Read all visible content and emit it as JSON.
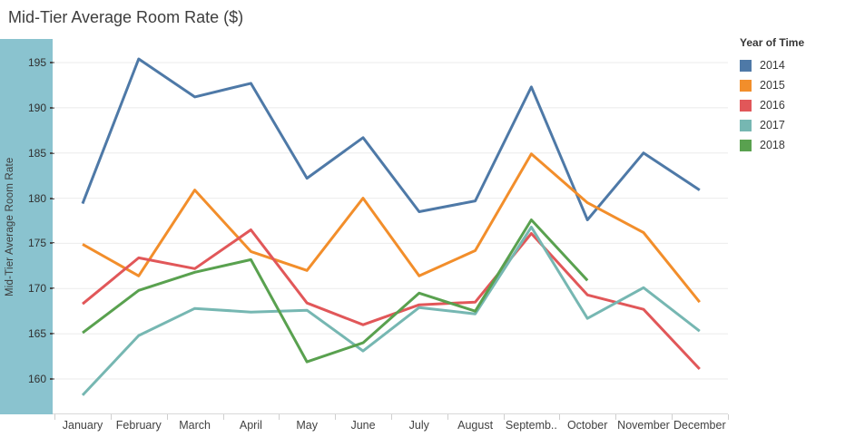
{
  "title": "Mid-Tier Average Room Rate ($)",
  "y_axis": {
    "label": "Mid-Tier Average Room Rate",
    "tick_values": [
      195,
      190,
      185,
      180,
      175,
      170,
      165,
      160
    ]
  },
  "x_axis": {
    "tick_labels": [
      "January",
      "February",
      "March",
      "April",
      "May",
      "June",
      "July",
      "August",
      "Septemb..",
      "October",
      "November",
      "December"
    ]
  },
  "legend": {
    "title": "Year of Time",
    "items": [
      {
        "label": "2014",
        "color": "#4e79a7"
      },
      {
        "label": "2015",
        "color": "#f28e2b"
      },
      {
        "label": "2016",
        "color": "#e15759"
      },
      {
        "label": "2017",
        "color": "#76b7b2"
      },
      {
        "label": "2018",
        "color": "#59a14f"
      }
    ]
  },
  "chart_data": {
    "type": "line",
    "title": "Mid-Tier Average Room Rate ($)",
    "xlabel": "",
    "ylabel": "Mid-Tier Average Room Rate",
    "x": [
      "January",
      "February",
      "March",
      "April",
      "May",
      "June",
      "July",
      "August",
      "September",
      "October",
      "November",
      "December"
    ],
    "x_display": [
      "January",
      "February",
      "March",
      "April",
      "May",
      "June",
      "July",
      "August",
      "Septemb..",
      "October",
      "November",
      "December"
    ],
    "ylim": [
      156,
      197.5
    ],
    "yticks": [
      160,
      165,
      170,
      175,
      180,
      185,
      190,
      195
    ],
    "grid": true,
    "legend_position": "right",
    "legend_title": "Year of Time",
    "series": [
      {
        "name": "2014",
        "color": "#4e79a7",
        "values": [
          179.4,
          195.4,
          191.2,
          192.7,
          182.2,
          186.7,
          178.5,
          179.7,
          192.3,
          177.6,
          185.0,
          180.9
        ]
      },
      {
        "name": "2015",
        "color": "#f28e2b",
        "values": [
          174.9,
          171.4,
          180.9,
          174.1,
          172.0,
          180.0,
          171.4,
          174.2,
          184.9,
          179.5,
          176.2,
          168.5
        ]
      },
      {
        "name": "2016",
        "color": "#e15759",
        "values": [
          168.3,
          173.4,
          172.2,
          176.5,
          168.4,
          166.0,
          168.2,
          168.5,
          176.1,
          169.3,
          167.7,
          161.1
        ]
      },
      {
        "name": "2017",
        "color": "#76b7b2",
        "values": [
          158.2,
          164.8,
          167.8,
          167.4,
          167.6,
          163.1,
          167.9,
          167.2,
          176.8,
          166.7,
          170.1,
          165.3
        ]
      },
      {
        "name": "2018",
        "color": "#59a14f",
        "values": [
          165.1,
          169.8,
          171.8,
          173.2,
          161.9,
          164.0,
          169.5,
          167.5,
          177.6,
          170.9,
          null,
          null
        ]
      }
    ]
  },
  "colors": {
    "sidebar_strip": "#8ac3cf",
    "gridline": "#ebebeb",
    "axis_line": "#d9d9d9",
    "tick_mark": "#cfcfcf",
    "y_tick_dash": "#4a4a4a"
  }
}
